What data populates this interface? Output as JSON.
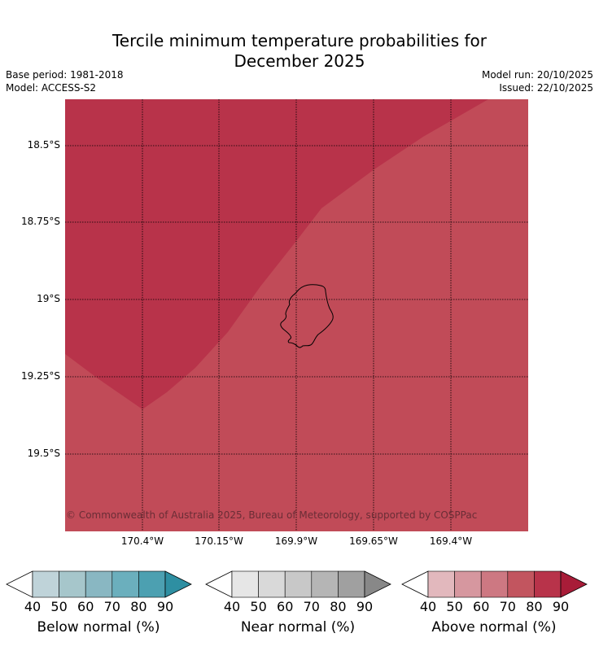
{
  "title_line1": "Tercile minimum temperature probabilities for",
  "title_line2": "December 2025",
  "base_period": "Base period: 1981-2018",
  "model": "Model: ACCESS-S2",
  "model_run": "Model run: 20/10/2025",
  "issued": "Issued: 22/10/2025",
  "copyright": "© Commonwealth of Australia 2025, Bureau of Meteorology, supported by COSPPac",
  "lat_labels": [
    "18.5°S",
    "18.75°S",
    "19°S",
    "19.25°S",
    "19.5°S"
  ],
  "lon_labels": [
    "170.4°W",
    "170.15°W",
    "169.9°W",
    "169.65°W",
    "169.4°W"
  ],
  "map_colors": {
    "above_80_90": "#b8334a",
    "above_70_80": "#c14b58"
  },
  "colorbars": [
    {
      "label": "Below normal (%)",
      "ticks": [
        "40",
        "50",
        "60",
        "70",
        "80",
        "90"
      ],
      "colors": [
        "#ffffff",
        "#bfd3d9",
        "#a6c6cb",
        "#89b7c2",
        "#6bafbd",
        "#4ca0b1",
        "#2e8fa2"
      ]
    },
    {
      "label": "Near normal (%)",
      "ticks": [
        "40",
        "50",
        "60",
        "70",
        "80",
        "90"
      ],
      "colors": [
        "#ffffff",
        "#e6e6e6",
        "#d9d9d9",
        "#c8c8c8",
        "#b5b5b5",
        "#a0a0a0",
        "#888888"
      ]
    },
    {
      "label": "Above normal (%)",
      "ticks": [
        "40",
        "50",
        "60",
        "70",
        "80",
        "90"
      ],
      "colors": [
        "#ffffff",
        "#e2b8bd",
        "#d6979f",
        "#cd7882",
        "#c2555f",
        "#b8334a",
        "#a81c38"
      ]
    }
  ]
}
